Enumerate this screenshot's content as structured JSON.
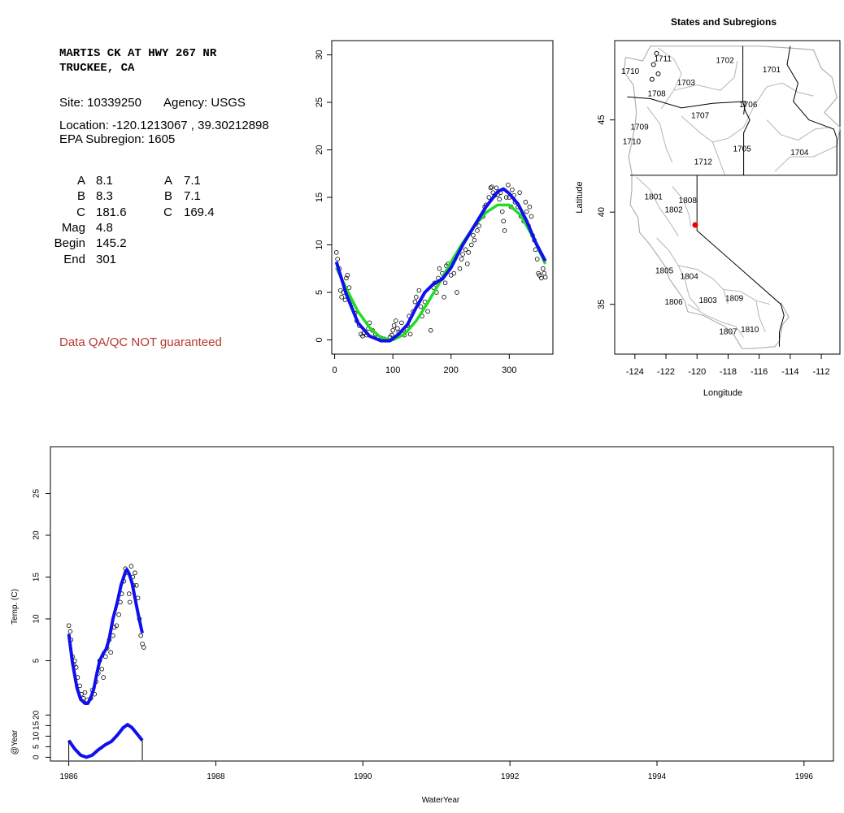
{
  "station": {
    "title_line1": "MARTIS CK AT HWY 267 NR",
    "title_line2": "TRUCKEE, CA",
    "site_text": "Site: 10339250",
    "agency_text": "Agency: USGS",
    "location_text": "Location: -120.1213067 , 39.30212898",
    "subregion_text": "EPA Subregion: 1605",
    "params_left": [
      {
        "label": "A",
        "value": "8.1"
      },
      {
        "label": "B",
        "value": "8.3"
      },
      {
        "label": "C",
        "value": "181.6"
      },
      {
        "label": "Mag",
        "value": "4.8"
      },
      {
        "label": "Begin",
        "value": "145.2"
      },
      {
        "label": "End",
        "value": "301"
      }
    ],
    "params_right": [
      {
        "label": "A",
        "value": "7.1"
      },
      {
        "label": "B",
        "value": "7.1"
      },
      {
        "label": "C",
        "value": "169.4"
      }
    ],
    "qa_note": "Data QA/QC NOT guaranteed"
  },
  "chart_data": [
    {
      "type": "scatter",
      "xlim": [
        -5,
        375
      ],
      "ylim": [
        -1.5,
        31.5
      ],
      "xticks": [
        0,
        100,
        200,
        300
      ],
      "yticks": [
        0,
        5,
        10,
        15,
        20,
        25,
        30
      ],
      "xlabel": "",
      "ylabel": "",
      "colors": {
        "points": "#000000",
        "fit_green": "#22dd22",
        "fit_blue": "#1010ee"
      },
      "points": [
        [
          3,
          9.2
        ],
        [
          5,
          8.5
        ],
        [
          8,
          7.5
        ],
        [
          10,
          5.2
        ],
        [
          12,
          4.5
        ],
        [
          15,
          5.0
        ],
        [
          18,
          4.2
        ],
        [
          20,
          6.5
        ],
        [
          22,
          6.8
        ],
        [
          25,
          5.5
        ],
        [
          28,
          4.0
        ],
        [
          30,
          3.8
        ],
        [
          35,
          2.8
        ],
        [
          38,
          2.0
        ],
        [
          42,
          1.5
        ],
        [
          45,
          0.6
        ],
        [
          48,
          0.4
        ],
        [
          50,
          0.7
        ],
        [
          55,
          0.5
        ],
        [
          58,
          1.2
        ],
        [
          60,
          1.8
        ],
        [
          65,
          1.0
        ],
        [
          70,
          0.6
        ],
        [
          75,
          0.3
        ],
        [
          80,
          0.2
        ],
        [
          85,
          0.1
        ],
        [
          90,
          0.0
        ],
        [
          95,
          0.3
        ],
        [
          98,
          0.5
        ],
        [
          100,
          1.0
        ],
        [
          102,
          1.5
        ],
        [
          105,
          2.0
        ],
        [
          108,
          1.2
        ],
        [
          110,
          0.8
        ],
        [
          115,
          1.8
        ],
        [
          118,
          1.0
        ],
        [
          120,
          0.5
        ],
        [
          125,
          1.5
        ],
        [
          128,
          2.5
        ],
        [
          130,
          0.6
        ],
        [
          135,
          3.0
        ],
        [
          138,
          4.0
        ],
        [
          140,
          4.5
        ],
        [
          145,
          5.2
        ],
        [
          148,
          3.5
        ],
        [
          150,
          2.5
        ],
        [
          155,
          4.0
        ],
        [
          160,
          3.0
        ],
        [
          165,
          1.0
        ],
        [
          170,
          5.5
        ],
        [
          172,
          6.0
        ],
        [
          175,
          5.0
        ],
        [
          178,
          6.5
        ],
        [
          180,
          7.5
        ],
        [
          185,
          7.0
        ],
        [
          188,
          4.5
        ],
        [
          190,
          6.0
        ],
        [
          192,
          7.8
        ],
        [
          195,
          8.0
        ],
        [
          200,
          6.8
        ],
        [
          205,
          7.0
        ],
        [
          210,
          5.0
        ],
        [
          215,
          7.5
        ],
        [
          218,
          8.5
        ],
        [
          220,
          9.0
        ],
        [
          225,
          9.5
        ],
        [
          228,
          8.0
        ],
        [
          230,
          9.2
        ],
        [
          235,
          10.0
        ],
        [
          238,
          11.0
        ],
        [
          240,
          10.5
        ],
        [
          245,
          11.5
        ],
        [
          248,
          12.0
        ],
        [
          250,
          12.8
        ],
        [
          255,
          13.0
        ],
        [
          258,
          14.0
        ],
        [
          260,
          14.2
        ],
        [
          265,
          15.0
        ],
        [
          268,
          16.0
        ],
        [
          270,
          16.1
        ],
        [
          272,
          15.5
        ],
        [
          275,
          15.2
        ],
        [
          278,
          16.0
        ],
        [
          280,
          15.3
        ],
        [
          283,
          14.8
        ],
        [
          285,
          15.5
        ],
        [
          288,
          13.5
        ],
        [
          290,
          12.5
        ],
        [
          292,
          11.5
        ],
        [
          295,
          15.0
        ],
        [
          298,
          16.3
        ],
        [
          300,
          15.0
        ],
        [
          303,
          14.0
        ],
        [
          305,
          15.8
        ],
        [
          308,
          15.2
        ],
        [
          310,
          14.5
        ],
        [
          315,
          14.0
        ],
        [
          318,
          15.5
        ],
        [
          320,
          13.0
        ],
        [
          325,
          12.5
        ],
        [
          328,
          14.5
        ],
        [
          330,
          13.5
        ],
        [
          333,
          12.0
        ],
        [
          335,
          14.0
        ],
        [
          338,
          13.0
        ],
        [
          340,
          11.0
        ],
        [
          343,
          10.5
        ],
        [
          345,
          9.5
        ],
        [
          348,
          8.5
        ],
        [
          350,
          7.0
        ],
        [
          352,
          6.8
        ],
        [
          355,
          6.5
        ],
        [
          358,
          7.5
        ],
        [
          360,
          7.0
        ],
        [
          362,
          6.6
        ]
      ],
      "green_fit": [
        [
          3,
          7.6
        ],
        [
          20,
          5.4
        ],
        [
          40,
          3.0
        ],
        [
          60,
          1.3
        ],
        [
          80,
          0.2
        ],
        [
          100,
          0.0
        ],
        [
          120,
          0.6
        ],
        [
          140,
          2.0
        ],
        [
          160,
          3.9
        ],
        [
          180,
          6.0
        ],
        [
          200,
          8.2
        ],
        [
          220,
          10.2
        ],
        [
          240,
          12.0
        ],
        [
          260,
          13.4
        ],
        [
          280,
          14.2
        ],
        [
          300,
          14.2
        ],
        [
          320,
          13.1
        ],
        [
          340,
          10.9
        ],
        [
          362,
          8.0
        ]
      ],
      "blue_fit": [
        [
          3,
          8.2
        ],
        [
          20,
          4.8
        ],
        [
          40,
          1.8
        ],
        [
          60,
          0.4
        ],
        [
          80,
          -0.1
        ],
        [
          95,
          -0.1
        ],
        [
          110,
          0.6
        ],
        [
          125,
          1.6
        ],
        [
          140,
          3.4
        ],
        [
          155,
          5.0
        ],
        [
          170,
          5.9
        ],
        [
          185,
          6.4
        ],
        [
          200,
          7.6
        ],
        [
          220,
          10.0
        ],
        [
          240,
          12.0
        ],
        [
          260,
          14.0
        ],
        [
          280,
          15.6
        ],
        [
          290,
          15.9
        ],
        [
          300,
          15.4
        ],
        [
          315,
          14.3
        ],
        [
          330,
          12.5
        ],
        [
          345,
          10.3
        ],
        [
          362,
          8.3
        ]
      ]
    },
    {
      "type": "map",
      "title": "States and Subregions",
      "xlabel": "Longitude",
      "ylabel": "Latitude",
      "xlim": [
        -125.3,
        -110.8
      ],
      "ylim": [
        32.3,
        49.3
      ],
      "xticks": [
        -124,
        -122,
        -120,
        -118,
        -116,
        -114,
        -112
      ],
      "yticks": [
        35,
        40,
        45
      ],
      "station_point": [
        -120.12,
        39.3
      ],
      "station_color": "#ee0000",
      "subregion_labels": [
        {
          "text": "1711",
          "lon": -122.2,
          "lat": 48.3
        },
        {
          "text": "1702",
          "lon": -118.2,
          "lat": 48.2
        },
        {
          "text": "1710",
          "lon": -124.3,
          "lat": 47.6
        },
        {
          "text": "1701",
          "lon": -115.2,
          "lat": 47.7
        },
        {
          "text": "1703",
          "lon": -120.7,
          "lat": 47.0
        },
        {
          "text": "1708",
          "lon": -122.6,
          "lat": 46.4
        },
        {
          "text": "1706",
          "lon": -116.7,
          "lat": 45.8
        },
        {
          "text": "1707",
          "lon": -119.8,
          "lat": 45.2
        },
        {
          "text": "1709",
          "lon": -123.7,
          "lat": 44.6
        },
        {
          "text": "1710",
          "lon": -124.2,
          "lat": 43.8
        },
        {
          "text": "1705",
          "lon": -117.1,
          "lat": 43.4
        },
        {
          "text": "1704",
          "lon": -113.4,
          "lat": 43.2
        },
        {
          "text": "1712",
          "lon": -119.6,
          "lat": 42.7
        },
        {
          "text": "1801",
          "lon": -122.8,
          "lat": 40.8
        },
        {
          "text": "1808",
          "lon": -120.6,
          "lat": 40.6
        },
        {
          "text": "1802",
          "lon": -121.5,
          "lat": 40.1
        },
        {
          "text": "1805",
          "lon": -122.1,
          "lat": 36.8
        },
        {
          "text": "1804",
          "lon": -120.5,
          "lat": 36.5
        },
        {
          "text": "1809",
          "lon": -117.6,
          "lat": 35.3
        },
        {
          "text": "1806",
          "lon": -121.5,
          "lat": 35.1
        },
        {
          "text": "1803",
          "lon": -119.3,
          "lat": 35.2
        },
        {
          "text": "1810",
          "lon": -116.6,
          "lat": 33.6
        },
        {
          "text": "1807",
          "lon": -118.0,
          "lat": 33.5
        }
      ]
    },
    {
      "type": "line",
      "xlabel": "WaterYear",
      "ylabel_upper": "Temp. (C)",
      "ylabel_lower": "@Year",
      "xlim": [
        1985.75,
        1996.4
      ],
      "xticks": [
        1986,
        1988,
        1990,
        1992,
        1994,
        1996
      ],
      "ylim_upper": [
        0,
        30
      ],
      "yticks_upper": [
        5,
        10,
        15,
        20,
        25
      ],
      "ylim_lower": [
        -1,
        24
      ],
      "yticks_lower": [
        0,
        5,
        10,
        15,
        20
      ],
      "colors": {
        "points": "#000000",
        "fit": "#1010ee"
      },
      "points": [
        [
          1986.0,
          9.2
        ],
        [
          1986.02,
          8.5
        ],
        [
          1986.03,
          7.5
        ],
        [
          1986.05,
          5.5
        ],
        [
          1986.07,
          4.5
        ],
        [
          1986.08,
          5.0
        ],
        [
          1986.1,
          4.2
        ],
        [
          1986.12,
          3.0
        ],
        [
          1986.15,
          2.0
        ],
        [
          1986.17,
          1.0
        ],
        [
          1986.2,
          0.5
        ],
        [
          1986.22,
          1.2
        ],
        [
          1986.25,
          0.3
        ],
        [
          1986.3,
          0.5
        ],
        [
          1986.32,
          1.5
        ],
        [
          1986.35,
          1.0
        ],
        [
          1986.37,
          2.5
        ],
        [
          1986.4,
          3.5
        ],
        [
          1986.42,
          5.0
        ],
        [
          1986.45,
          4.0
        ],
        [
          1986.47,
          3.0
        ],
        [
          1986.5,
          5.5
        ],
        [
          1986.52,
          6.5
        ],
        [
          1986.55,
          7.5
        ],
        [
          1986.57,
          6.0
        ],
        [
          1986.6,
          8.0
        ],
        [
          1986.62,
          9.0
        ],
        [
          1986.65,
          9.2
        ],
        [
          1986.68,
          10.5
        ],
        [
          1986.7,
          12.0
        ],
        [
          1986.72,
          13.0
        ],
        [
          1986.75,
          14.5
        ],
        [
          1986.77,
          16.0
        ],
        [
          1986.8,
          15.5
        ],
        [
          1986.82,
          13.0
        ],
        [
          1986.83,
          12.0
        ],
        [
          1986.85,
          16.3
        ],
        [
          1986.87,
          15.0
        ],
        [
          1986.88,
          14.0
        ],
        [
          1986.9,
          15.5
        ],
        [
          1986.92,
          14.0
        ],
        [
          1986.94,
          12.5
        ],
        [
          1986.96,
          10.0
        ],
        [
          1986.98,
          8.0
        ],
        [
          1987.0,
          7.0
        ],
        [
          1987.02,
          6.6
        ]
      ],
      "fit_upper": [
        [
          1986.0,
          8.2
        ],
        [
          1986.05,
          4.8
        ],
        [
          1986.11,
          1.8
        ],
        [
          1986.16,
          0.4
        ],
        [
          1986.22,
          -0.1
        ],
        [
          1986.26,
          -0.1
        ],
        [
          1986.3,
          0.6
        ],
        [
          1986.34,
          1.6
        ],
        [
          1986.38,
          3.4
        ],
        [
          1986.42,
          5.0
        ],
        [
          1986.47,
          5.9
        ],
        [
          1986.51,
          6.4
        ],
        [
          1986.55,
          7.6
        ],
        [
          1986.6,
          10.0
        ],
        [
          1986.66,
          12.0
        ],
        [
          1986.71,
          14.0
        ],
        [
          1986.77,
          15.6
        ],
        [
          1986.79,
          15.9
        ],
        [
          1986.82,
          15.4
        ],
        [
          1986.86,
          14.3
        ],
        [
          1986.9,
          12.5
        ],
        [
          1986.95,
          10.3
        ],
        [
          1987.0,
          8.3
        ]
      ],
      "fit_lower": [
        [
          1986.0,
          8.0
        ],
        [
          1986.08,
          4.0
        ],
        [
          1986.16,
          1.0
        ],
        [
          1986.24,
          0.0
        ],
        [
          1986.32,
          1.0
        ],
        [
          1986.4,
          3.5
        ],
        [
          1986.5,
          6.0
        ],
        [
          1986.58,
          7.5
        ],
        [
          1986.66,
          10.5
        ],
        [
          1986.74,
          14.0
        ],
        [
          1986.8,
          15.5
        ],
        [
          1986.86,
          14.0
        ],
        [
          1986.93,
          11.0
        ],
        [
          1987.0,
          8.0
        ]
      ]
    }
  ]
}
